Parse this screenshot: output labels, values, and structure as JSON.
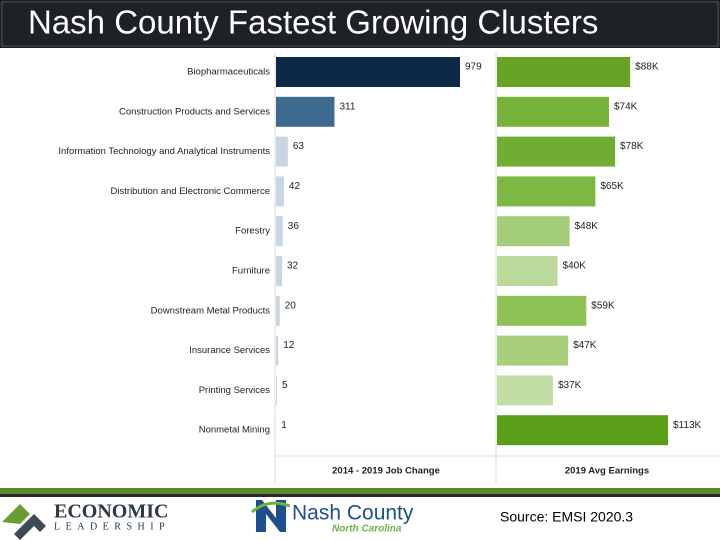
{
  "title": "Nash County Fastest Growing Clusters",
  "source": "Source: EMSI 2020.3",
  "logos": {
    "economic": "ECONOMIC",
    "leadership": "LEADERSHIP",
    "nash": "Nash County",
    "state": "North Carolina"
  },
  "chart_data": [
    {
      "type": "bar",
      "orientation": "horizontal",
      "x_label": "2014 - 2019 Job Change",
      "categories": [
        "Biopharmaceuticals",
        "Construction Products and Services",
        "Information Technology and Analytical Instruments",
        "Distribution and Electronic Commerce",
        "Forestry",
        "Furniture",
        "Downstream Metal Products",
        "Insurance Services",
        "Printing Services",
        "Nonmetal Mining"
      ],
      "values": [
        979,
        311,
        63,
        42,
        36,
        32,
        20,
        12,
        5,
        1
      ],
      "colors": [
        "#0b2a47",
        "#3e6a8f",
        "#c8d5e2",
        "#c8d5e2",
        "#c8d5e2",
        "#c8d5e2",
        "#c8d5e2",
        "#c8d5e2",
        "#c8d5e2",
        "#c8d5e2"
      ]
    },
    {
      "type": "bar",
      "orientation": "horizontal",
      "x_label": "2019 Avg Earnings",
      "values": [
        88000,
        74000,
        78000,
        65000,
        48000,
        40000,
        59000,
        47000,
        37000,
        113000
      ],
      "value_labels": [
        "$88K",
        "$74K",
        "$78K",
        "$65K",
        "$48K",
        "$40K",
        "$59K",
        "$47K",
        "$37K",
        "$113K"
      ],
      "colors": [
        "#66a428",
        "#77b33a",
        "#6fae32",
        "#7db744",
        "#a3cd78",
        "#bbd99a",
        "#8ec257",
        "#a7cf7e",
        "#c3dea5",
        "#5a9e1a"
      ]
    }
  ]
}
